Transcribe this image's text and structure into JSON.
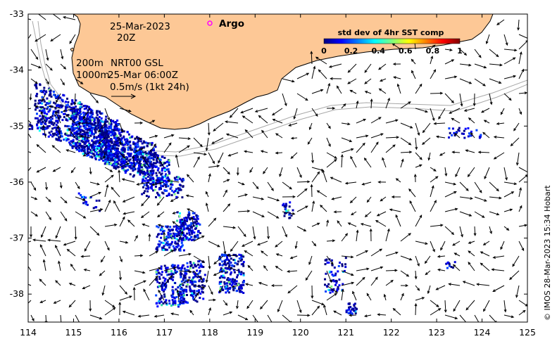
{
  "map": {
    "lon_range": [
      114,
      125
    ],
    "lat_range": [
      -38.5,
      -33
    ],
    "x_ticks": [
      "114",
      "115",
      "116",
      "117",
      "118",
      "119",
      "120",
      "121",
      "122",
      "123",
      "124",
      "125"
    ],
    "y_ticks": [
      "-33",
      "-34",
      "-35",
      "-36",
      "-37",
      "-38"
    ],
    "land_color": "#FDC896",
    "coast_color": "#000000"
  },
  "info": {
    "date": "25-Mar-2023",
    "time": "20Z",
    "depth_line1": "200m",
    "depth_line2": "1000m",
    "product": "NRT00 GSL",
    "product_time": "25-Mar 06:00Z",
    "scale_text": "0.5m/s (1kt 24h)"
  },
  "legend": {
    "argo_label": "Argo",
    "argo_color": "#ff00ff",
    "colorbar_title": "std dev of 4hr SST comp",
    "colorbar_ticks": [
      "0",
      "0.2",
      "0.4",
      "0.6",
      "0.8",
      "1"
    ],
    "colormap": [
      "#00007f",
      "#0000ff",
      "#007fff",
      "#00ffff",
      "#7fff7f",
      "#ffff00",
      "#ff7f00",
      "#ff0000",
      "#7f0000"
    ]
  },
  "credit": "© IMOS 28-Mar-2023 15:34 Hobart"
}
